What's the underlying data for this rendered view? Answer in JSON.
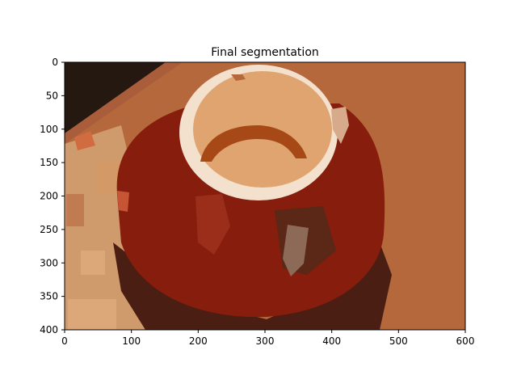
{
  "title": "Final segmentation",
  "axes": {
    "xlim": [
      0,
      600
    ],
    "ylim": [
      400,
      0
    ],
    "xticks": [
      0,
      100,
      200,
      300,
      400,
      500,
      600
    ],
    "yticks": [
      0,
      50,
      100,
      150,
      200,
      250,
      300,
      350,
      400
    ]
  },
  "colors": {
    "table_orange": "#b5683c",
    "dark_corner": "#241810",
    "pot_red": "#861d0d",
    "pot_shadow": "#4a1e12",
    "rim_cream": "#f3e0cd",
    "inner_tan": "#dfa46f",
    "inner_rust": "#a74917",
    "floor_tan": "#d09b6c",
    "floor_light": "#dca87a",
    "highlight_brown": "#8c6a57",
    "accent_orange": "#d06c3f"
  }
}
